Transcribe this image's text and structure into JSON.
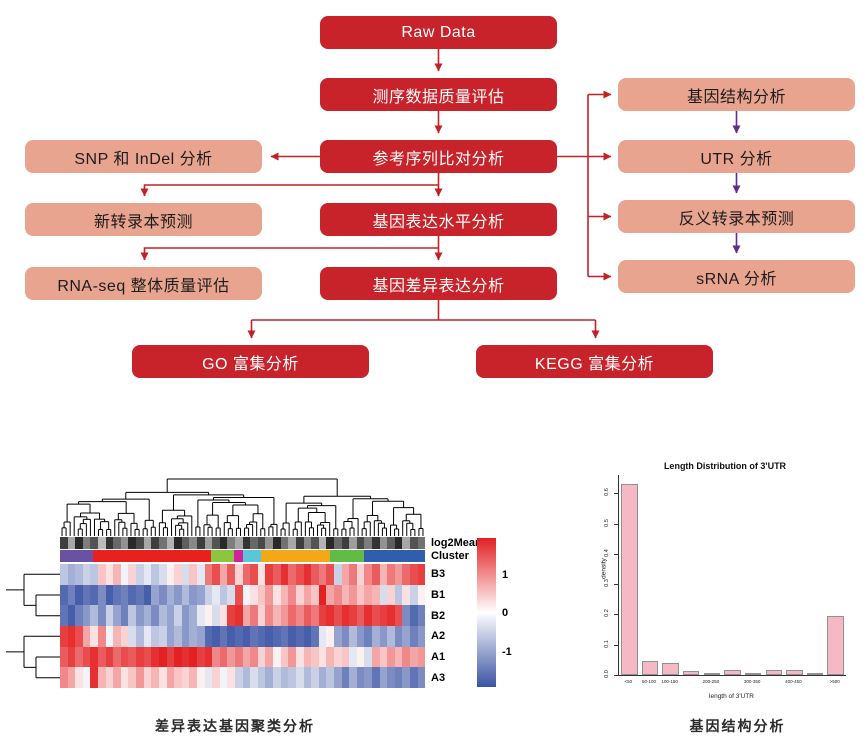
{
  "colors": {
    "primary_box": "#C8232B",
    "secondary_box": "#E9A48F",
    "arrow_red": "#C42127",
    "arrow_purple": "#5F2C8B",
    "heatmap_high": "#E32022",
    "heatmap_mid": "#FFFFFF",
    "heatmap_low": "#3A53A4",
    "bar_fill": "#F5B9C5",
    "bar_border": "#919191",
    "dendrogram_line": "#000000"
  },
  "flowchart": {
    "nodes": [
      {
        "id": "raw_data",
        "label": "Raw Data",
        "style": "primary"
      },
      {
        "id": "seq_qc",
        "label": "测序数据质量评估",
        "style": "primary"
      },
      {
        "id": "ref_align",
        "label": "参考序列比对分析",
        "style": "primary"
      },
      {
        "id": "expr_level",
        "label": "基因表达水平分析",
        "style": "primary"
      },
      {
        "id": "diff_expr",
        "label": "基因差异表达分析",
        "style": "primary"
      },
      {
        "id": "go_enrich",
        "label": "GO 富集分析",
        "style": "primary"
      },
      {
        "id": "kegg_enrich",
        "label": "KEGG 富集分析",
        "style": "primary"
      },
      {
        "id": "snp_indel",
        "label": "SNP 和 InDel 分析",
        "style": "secondary"
      },
      {
        "id": "novel_transcript",
        "label": "新转录本预测",
        "style": "secondary"
      },
      {
        "id": "rnaseq_qc",
        "label": "RNA-seq 整体质量评估",
        "style": "secondary"
      },
      {
        "id": "gene_structure",
        "label": "基因结构分析",
        "style": "secondary"
      },
      {
        "id": "utr",
        "label": "UTR 分析",
        "style": "secondary"
      },
      {
        "id": "antisense",
        "label": "反义转录本预测",
        "style": "secondary"
      },
      {
        "id": "srna",
        "label": "sRNA 分析",
        "style": "secondary"
      }
    ],
    "edges": [
      {
        "from": "raw_data",
        "to": "seq_qc"
      },
      {
        "from": "seq_qc",
        "to": "ref_align"
      },
      {
        "from": "ref_align",
        "to": "snp_indel"
      },
      {
        "from": "ref_align",
        "to": "novel_transcript"
      },
      {
        "from": "ref_align",
        "to": "expr_level"
      },
      {
        "from": "expr_level",
        "to": "rnaseq_qc"
      },
      {
        "from": "expr_level",
        "to": "diff_expr"
      },
      {
        "from": "diff_expr",
        "to": "go_enrich"
      },
      {
        "from": "diff_expr",
        "to": "kegg_enrich"
      },
      {
        "from": "ref_align",
        "to": "gene_structure"
      },
      {
        "from": "ref_align",
        "to": "utr"
      },
      {
        "from": "ref_align",
        "to": "antisense"
      },
      {
        "from": "ref_align",
        "to": "srna"
      },
      {
        "from": "gene_structure",
        "to": "utr",
        "color": "purple"
      },
      {
        "from": "utr",
        "to": "antisense",
        "color": "purple"
      },
      {
        "from": "antisense",
        "to": "srna",
        "color": "purple"
      }
    ]
  },
  "chart_data": [
    {
      "type": "heatmap",
      "caption": "差异表达基因聚类分析",
      "rows": [
        "B3",
        "B1",
        "B2",
        "A2",
        "A1",
        "A3"
      ],
      "annotation_labels": [
        "log2Mean",
        "Cluster"
      ],
      "colorbar_ticks": [
        "1",
        "0",
        "-1"
      ],
      "vmin": -1.5,
      "vmax": 1.5,
      "legend_position": "right",
      "row_dendrogram": "((B3,(B1,B2)),(A2,(A1,A3)))",
      "cluster_segments": [
        {
          "color": "#6951A3",
          "frac": 0.09
        },
        {
          "color": "#E8201E",
          "frac": 0.325
        },
        {
          "color": "#8CC63F",
          "frac": 0.063
        },
        {
          "color": "#D3219C",
          "frac": 0.022
        },
        {
          "color": "#5BC6DA",
          "frac": 0.05
        },
        {
          "color": "#F3A816",
          "frac": 0.19
        },
        {
          "color": "#62BB46",
          "frac": 0.094
        },
        {
          "color": "#2E5EAC",
          "frac": 0.166
        }
      ],
      "log2mean_strip": [
        0.8,
        0.3,
        0.9,
        0.5,
        0.7,
        0.2,
        0.85,
        0.6,
        0.4,
        0.9,
        0.75,
        0.3,
        0.8,
        0.55,
        0.25,
        0.9,
        0.65,
        0.45,
        0.8,
        0.35,
        0.7,
        0.9,
        0.5,
        0.3,
        0.85,
        0.6,
        0.75,
        0.4,
        0.9,
        0.55,
        0.3,
        0.8,
        0.45,
        0.7,
        0.25,
        0.9,
        0.6,
        0.8,
        0.35,
        0.75,
        0.5,
        0.85,
        0.4,
        0.65,
        0.9,
        0.3,
        0.7,
        0.55
      ],
      "values": [
        [
          -0.5,
          -0.7,
          -0.6,
          -0.4,
          -0.5,
          0.4,
          0.2,
          0.5,
          -0.1,
          0.3,
          -0.4,
          -0.2,
          -0.5,
          -0.3,
          0.1,
          0.3,
          -0.3,
          0.4,
          -0.2,
          0.9,
          1.2,
          0.6,
          1.1,
          0.3,
          1.0,
          1.2,
          0.2,
          1.3,
          1.1,
          1.4,
          1.0,
          1.2,
          1.4,
          1.1,
          0.9,
          1.2,
          -0.4,
          0.6,
          0.9,
          0.3,
          0.8,
          1.1,
          0.5,
          0.9,
          0.7,
          1.0,
          1.2,
          1.3
        ],
        [
          -1.3,
          -1.1,
          -1.4,
          -1.2,
          -1.3,
          -1.0,
          -1.4,
          -1.2,
          -1.1,
          -1.3,
          -1.2,
          -1.4,
          -0.8,
          -1.0,
          -0.7,
          -0.9,
          -0.6,
          -0.9,
          -0.8,
          -0.4,
          -0.2,
          -0.5,
          -0.3,
          1.2,
          -0.1,
          0.2,
          0.4,
          0.7,
          0.2,
          0.5,
          0.8,
          0.3,
          0.6,
          0.4,
          1.5,
          0.6,
          0.8,
          0.5,
          0.7,
          0.4,
          0.6,
          0.5,
          -0.3,
          0.3,
          -0.5,
          0.2,
          -0.4,
          0.1
        ],
        [
          -1.2,
          -1.4,
          -1.1,
          -0.9,
          -0.6,
          -1.0,
          -0.4,
          -0.8,
          -1.1,
          -0.5,
          -0.9,
          -0.7,
          -1.0,
          -0.6,
          -0.8,
          -0.4,
          -0.9,
          -0.7,
          -0.2,
          0.1,
          -0.3,
          0.2,
          1.3,
          1.4,
          0.6,
          0.9,
          0.3,
          0.8,
          0.5,
          0.7,
          1.0,
          0.8,
          1.1,
          0.9,
          1.3,
          1.4,
          1.2,
          1.4,
          1.3,
          1.1,
          1.4,
          1.2,
          1.3,
          1.4,
          1.2,
          -1.0,
          -1.3,
          -1.1
        ],
        [
          1.3,
          1.4,
          1.2,
          0.6,
          0.2,
          0.8,
          -0.1,
          0.5,
          0.3,
          -0.3,
          -0.6,
          -0.2,
          -0.5,
          -0.4,
          -0.8,
          -0.6,
          -0.9,
          -0.7,
          -0.8,
          -1.3,
          -1.4,
          -1.2,
          -1.4,
          -1.3,
          -1.4,
          -1.2,
          -1.3,
          -1.4,
          -1.3,
          -1.2,
          -1.4,
          -1.3,
          -1.4,
          -1.2,
          -0.2,
          0.1,
          -0.8,
          -1.0,
          -0.6,
          -0.9,
          -1.1,
          -0.7,
          -0.9,
          -0.6,
          -1.0,
          -0.8,
          -1.1,
          -0.9
        ],
        [
          1.1,
          1.3,
          1.0,
          1.2,
          1.4,
          1.1,
          1.3,
          1.0,
          1.2,
          1.1,
          1.3,
          1.2,
          1.4,
          1.5,
          1.3,
          1.5,
          1.4,
          1.5,
          1.3,
          1.4,
          0.8,
          1.0,
          0.7,
          0.9,
          0.6,
          0.8,
          0.3,
          0.6,
          0.1,
          0.4,
          0.7,
          0.2,
          0.5,
          0.4,
          0.2,
          0.5,
          0.3,
          0.4,
          -0.2,
          0.1,
          -0.3,
          0.6,
          0.4,
          0.7,
          0.5,
          0.8,
          0.6,
          0.7
        ],
        [
          0.8,
          0.6,
          0.2,
          -0.1,
          1.4,
          0.5,
          0.3,
          0.6,
          0.2,
          0.4,
          0.7,
          0.3,
          0.5,
          0.2,
          0.6,
          0.4,
          0.3,
          0.5,
          0.1,
          -0.2,
          0.3,
          -0.1,
          0.2,
          -0.4,
          -0.6,
          -0.3,
          -0.5,
          -0.7,
          -0.4,
          -0.6,
          -0.5,
          -0.3,
          -0.6,
          -0.4,
          -0.7,
          -0.5,
          -0.8,
          -1.1,
          -0.7,
          -1.0,
          -0.9,
          -1.2,
          -0.8,
          -1.0,
          -1.1,
          -0.9,
          -1.2,
          -1.0
        ]
      ]
    },
    {
      "type": "bar",
      "title": "Length Distribution of 3'UTR",
      "caption": "基因结构分析",
      "xlabel": "length of 3'UTR",
      "ylabel": "density",
      "n_bars": 11,
      "values": [
        0.63,
        0.048,
        0.04,
        0.012,
        0.005,
        0.018,
        0.005,
        0.018,
        0.018,
        0.002,
        0.195
      ],
      "xtick_labels": [
        "<50",
        "50-100",
        "100-150",
        "200-250",
        "300-350",
        "400-450",
        ">500"
      ],
      "xtick_positions": [
        0,
        1,
        2,
        4,
        6,
        8,
        10
      ],
      "yticks": [
        "0.0",
        "0.1",
        "0.2",
        "0.3",
        "0.4",
        "0.5",
        "0.6"
      ],
      "ylim": [
        0,
        0.66
      ],
      "grid": false
    }
  ]
}
